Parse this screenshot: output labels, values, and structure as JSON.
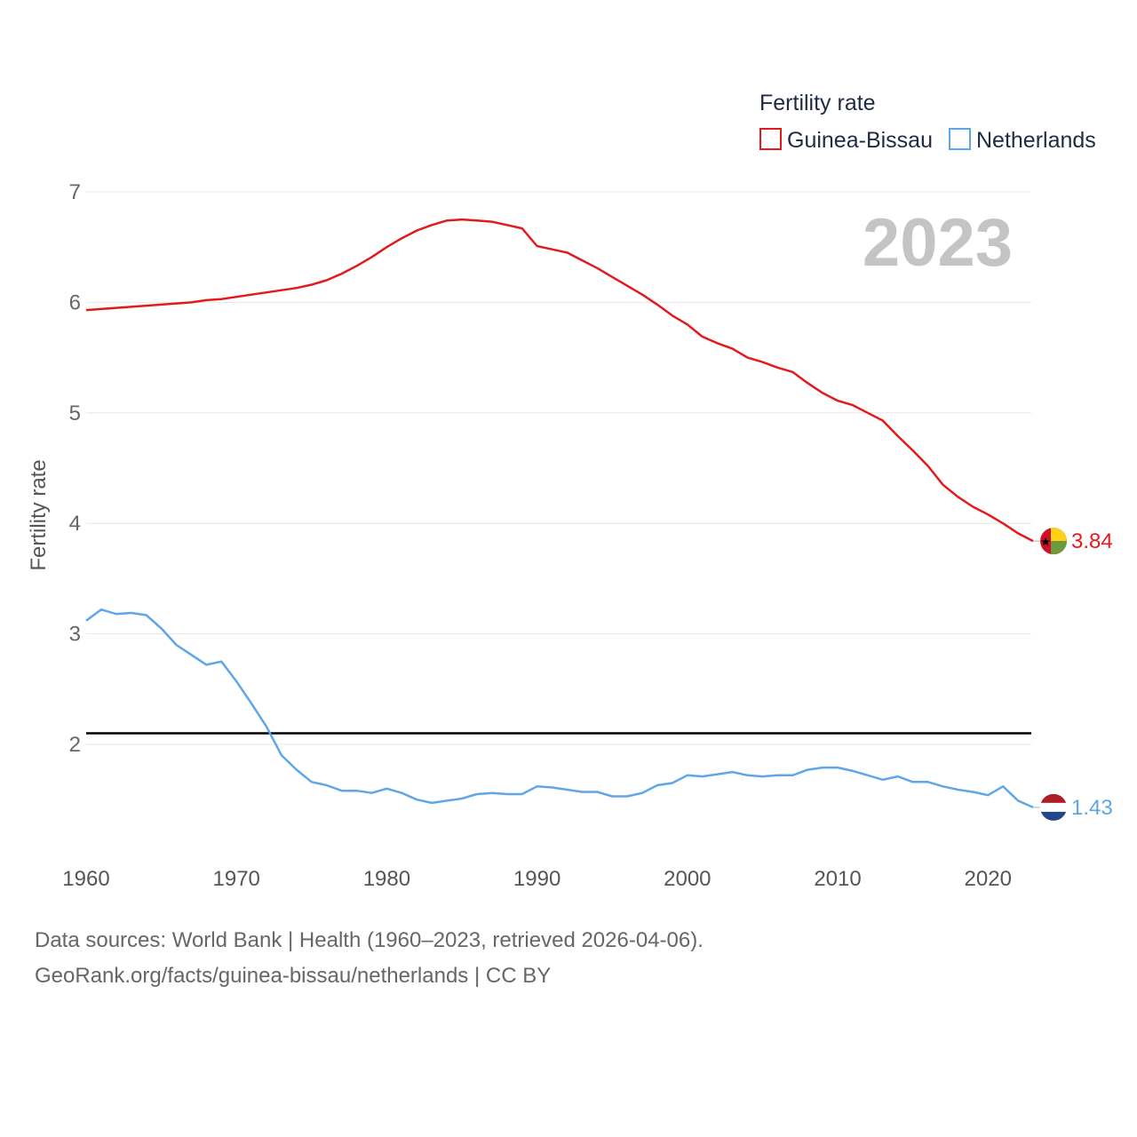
{
  "chart_data": {
    "type": "line",
    "title": "Fertility rate",
    "ylabel": "Fertility rate",
    "xlabel": "",
    "year_label": "2023",
    "xlim": [
      1960,
      2023
    ],
    "ylim": [
      1.2,
      7.2
    ],
    "yticks": [
      7,
      6,
      5,
      4,
      3,
      2
    ],
    "xticks": [
      1960,
      1970,
      1980,
      1990,
      2000,
      2010,
      2020
    ],
    "reference_line": 2.1,
    "x": [
      1960,
      1961,
      1962,
      1963,
      1964,
      1965,
      1966,
      1967,
      1968,
      1969,
      1970,
      1971,
      1972,
      1973,
      1974,
      1975,
      1976,
      1977,
      1978,
      1979,
      1980,
      1981,
      1982,
      1983,
      1984,
      1985,
      1986,
      1987,
      1988,
      1989,
      1990,
      1991,
      1992,
      1993,
      1994,
      1995,
      1996,
      1997,
      1998,
      1999,
      2000,
      2001,
      2002,
      2003,
      2004,
      2005,
      2006,
      2007,
      2008,
      2009,
      2010,
      2011,
      2012,
      2013,
      2014,
      2015,
      2016,
      2017,
      2018,
      2019,
      2020,
      2021,
      2022,
      2023
    ],
    "series": [
      {
        "name": "Guinea-Bissau",
        "color": "#e31a1c",
        "end_label": "3.84",
        "flag": "guinea-bissau",
        "values": [
          5.93,
          5.94,
          5.95,
          5.96,
          5.97,
          5.98,
          5.99,
          6.0,
          6.02,
          6.03,
          6.05,
          6.07,
          6.09,
          6.11,
          6.13,
          6.16,
          6.2,
          6.26,
          6.33,
          6.41,
          6.5,
          6.58,
          6.65,
          6.7,
          6.74,
          6.75,
          6.74,
          6.73,
          6.7,
          6.67,
          6.51,
          6.48,
          6.45,
          6.38,
          6.31,
          6.23,
          6.15,
          6.07,
          5.98,
          5.88,
          5.8,
          5.69,
          5.63,
          5.58,
          5.5,
          5.46,
          5.41,
          5.37,
          5.27,
          5.18,
          5.11,
          5.07,
          5.0,
          4.93,
          4.79,
          4.66,
          4.52,
          4.35,
          4.24,
          4.15,
          4.08,
          4.0,
          3.91,
          3.84
        ]
      },
      {
        "name": "Netherlands",
        "color": "#5fa6e6",
        "end_label": "1.43",
        "flag": "netherlands",
        "values": [
          3.12,
          3.22,
          3.18,
          3.19,
          3.17,
          3.05,
          2.9,
          2.81,
          2.72,
          2.75,
          2.57,
          2.37,
          2.16,
          1.9,
          1.77,
          1.66,
          1.63,
          1.58,
          1.58,
          1.56,
          1.6,
          1.56,
          1.5,
          1.47,
          1.49,
          1.51,
          1.55,
          1.56,
          1.55,
          1.55,
          1.62,
          1.61,
          1.59,
          1.57,
          1.57,
          1.53,
          1.53,
          1.56,
          1.63,
          1.65,
          1.72,
          1.71,
          1.73,
          1.75,
          1.72,
          1.71,
          1.72,
          1.72,
          1.77,
          1.79,
          1.79,
          1.76,
          1.72,
          1.68,
          1.71,
          1.66,
          1.66,
          1.62,
          1.59,
          1.57,
          1.54,
          1.62,
          1.49,
          1.43
        ]
      }
    ],
    "legend": {
      "title": "Fertility rate",
      "position": "top-right"
    }
  },
  "footer": {
    "line1": "Data sources: World Bank | Health (1960–2023, retrieved 2026-04-06).",
    "line2": "GeoRank.org/facts/guinea-bissau/netherlands | CC BY"
  }
}
